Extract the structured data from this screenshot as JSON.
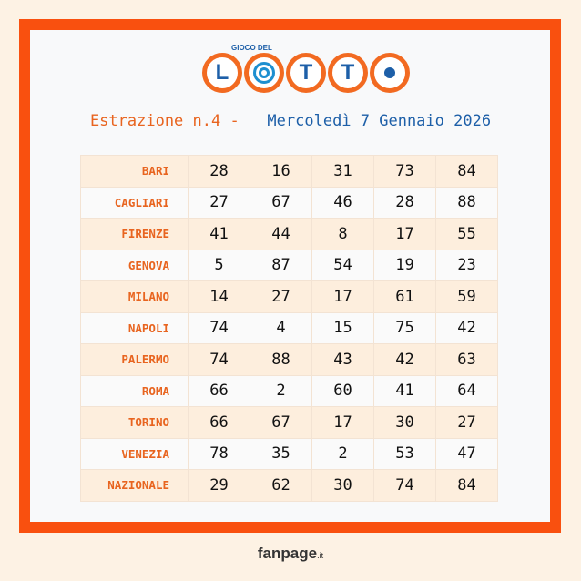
{
  "logo": {
    "top_text": "GIOCO DEL",
    "word": "LOTTO"
  },
  "header": {
    "draw_label": "Estrazione n.4 -",
    "date": "Mercoledì 7 Gennaio 2026"
  },
  "colors": {
    "accent": "#f9500f",
    "city": "#e8641f",
    "blue": "#1d5fa8"
  },
  "rows": [
    {
      "city": "BARI",
      "numbers": [
        "28",
        "16",
        "31",
        "73",
        "84"
      ]
    },
    {
      "city": "CAGLIARI",
      "numbers": [
        "27",
        "67",
        "46",
        "28",
        "88"
      ]
    },
    {
      "city": "FIRENZE",
      "numbers": [
        "41",
        "44",
        "8",
        "17",
        "55"
      ]
    },
    {
      "city": "GENOVA",
      "numbers": [
        "5",
        "87",
        "54",
        "19",
        "23"
      ]
    },
    {
      "city": "MILANO",
      "numbers": [
        "14",
        "27",
        "17",
        "61",
        "59"
      ]
    },
    {
      "city": "NAPOLI",
      "numbers": [
        "74",
        "4",
        "15",
        "75",
        "42"
      ]
    },
    {
      "city": "PALERMO",
      "numbers": [
        "74",
        "88",
        "43",
        "42",
        "63"
      ]
    },
    {
      "city": "ROMA",
      "numbers": [
        "66",
        "2",
        "60",
        "41",
        "64"
      ]
    },
    {
      "city": "TORINO",
      "numbers": [
        "66",
        "67",
        "17",
        "30",
        "27"
      ]
    },
    {
      "city": "VENEZIA",
      "numbers": [
        "78",
        "35",
        "2",
        "53",
        "47"
      ]
    },
    {
      "city": "NAZIONALE",
      "numbers": [
        "29",
        "62",
        "30",
        "74",
        "84"
      ]
    }
  ],
  "footer": {
    "brand": "fanpage",
    "tld": ".it"
  }
}
